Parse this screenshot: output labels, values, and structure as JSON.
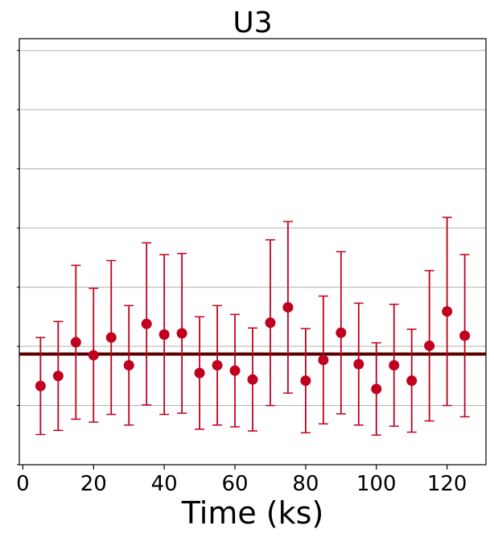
{
  "chart_data": {
    "type": "scatter",
    "title": "U3",
    "xlabel": "Time (ks)",
    "ylabel": "",
    "xlim": [
      -1,
      131
    ],
    "ylim": [
      0,
      7.2
    ],
    "x_ticks": [
      0,
      20,
      40,
      60,
      80,
      100,
      120
    ],
    "y_gridlines": [
      1,
      2,
      3,
      4,
      5,
      6,
      7
    ],
    "grid": "horizontal",
    "marker_color": "#c0001e",
    "reference_line_color": "#5a0000",
    "reference_value": 1.87,
    "series": [
      {
        "x": [
          5,
          10,
          15,
          20,
          25,
          30,
          35,
          40,
          45,
          50,
          55,
          60,
          65,
          70,
          75,
          80,
          85,
          90,
          95,
          100,
          105,
          110,
          115,
          120,
          125
        ],
        "y": [
          1.33,
          1.5,
          2.07,
          1.85,
          2.15,
          1.68,
          2.38,
          2.2,
          2.22,
          1.55,
          1.68,
          1.59,
          1.44,
          2.4,
          2.66,
          1.42,
          1.77,
          2.23,
          1.7,
          1.28,
          1.68,
          1.42,
          2.01,
          2.59,
          2.18
        ],
        "yerr": [
          0.82,
          0.92,
          1.3,
          1.13,
          1.3,
          1.01,
          1.37,
          1.35,
          1.35,
          0.95,
          1.01,
          0.95,
          0.87,
          1.4,
          1.45,
          0.88,
          1.08,
          1.37,
          1.03,
          0.78,
          1.03,
          0.87,
          1.27,
          1.59,
          1.37
        ]
      }
    ]
  }
}
